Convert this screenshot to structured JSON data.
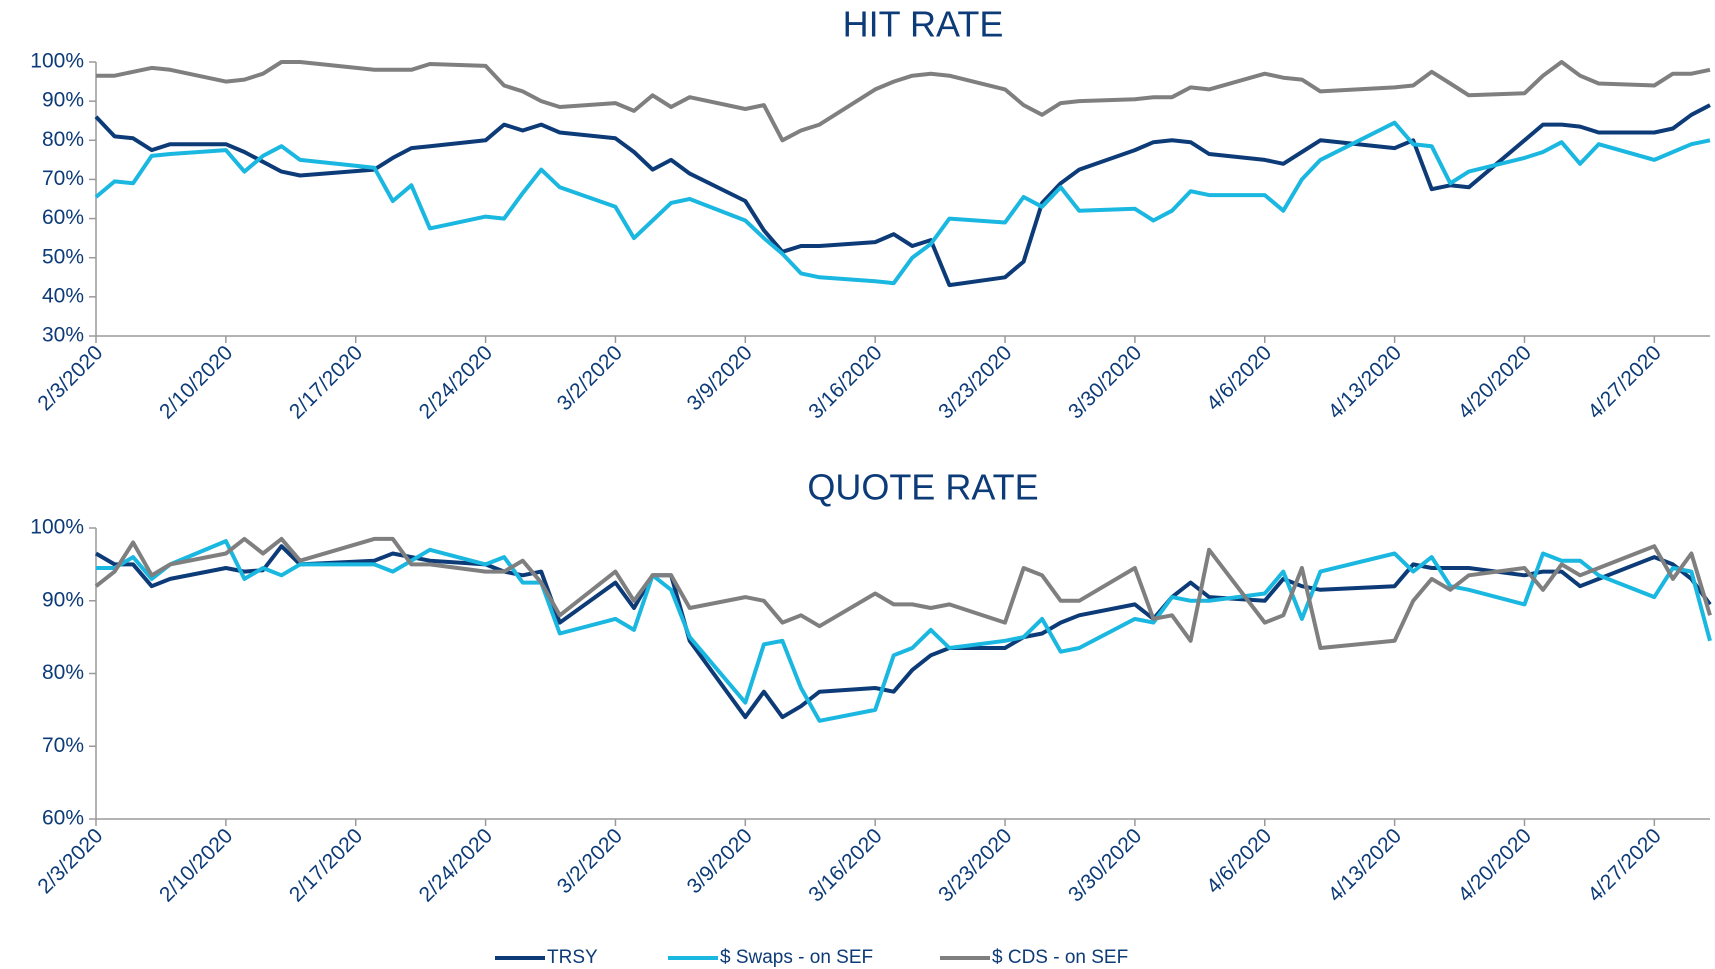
{
  "chart_data": [
    {
      "type": "line",
      "title": "HIT RATE",
      "x": [
        "2/3/2020",
        "2/4/2020",
        "2/5/2020",
        "2/6/2020",
        "2/7/2020",
        "2/10/2020",
        "2/11/2020",
        "2/12/2020",
        "2/13/2020",
        "2/14/2020",
        "2/18/2020",
        "2/19/2020",
        "2/20/2020",
        "2/21/2020",
        "2/24/2020",
        "2/25/2020",
        "2/26/2020",
        "2/27/2020",
        "2/28/2020",
        "3/2/2020",
        "3/3/2020",
        "3/4/2020",
        "3/5/2020",
        "3/6/2020",
        "3/9/2020",
        "3/10/2020",
        "3/11/2020",
        "3/12/2020",
        "3/13/2020",
        "3/16/2020",
        "3/17/2020",
        "3/18/2020",
        "3/19/2020",
        "3/20/2020",
        "3/23/2020",
        "3/24/2020",
        "3/25/2020",
        "3/26/2020",
        "3/27/2020",
        "3/30/2020",
        "3/31/2020",
        "4/1/2020",
        "4/2/2020",
        "4/3/2020",
        "4/6/2020",
        "4/7/2020",
        "4/8/2020",
        "4/9/2020",
        "4/13/2020",
        "4/14/2020",
        "4/15/2020",
        "4/16/2020",
        "4/17/2020",
        "4/20/2020",
        "4/21/2020",
        "4/22/2020",
        "4/23/2020",
        "4/24/2020",
        "4/27/2020",
        "4/28/2020",
        "4/29/2020",
        "4/30/2020"
      ],
      "series": [
        {
          "name": "TRSY",
          "color": "#0d3b78",
          "values": [
            86,
            81,
            80.5,
            77.5,
            79,
            79,
            77,
            74.5,
            72,
            71,
            72.5,
            75.5,
            78,
            78.5,
            80,
            84,
            82.5,
            84,
            82,
            80.5,
            77,
            72.5,
            75,
            71.5,
            64.5,
            57,
            51.5,
            53,
            53,
            54,
            56,
            53,
            54.5,
            43,
            45,
            49,
            64,
            69,
            72.5,
            77.5,
            79.5,
            80,
            79.5,
            76.5,
            75,
            74,
            77,
            80,
            78,
            80,
            67.5,
            68.5,
            68,
            80,
            84,
            84,
            83.5,
            82,
            82,
            83,
            86.5,
            89
          ]
        },
        {
          "name": "$ Swaps - on SEF",
          "color": "#1ab7e0",
          "values": [
            65.5,
            69.5,
            69,
            76,
            76.5,
            77.5,
            72,
            76,
            78.5,
            75,
            73,
            64.5,
            68.5,
            57.5,
            60.5,
            60,
            66.5,
            72.5,
            68,
            63,
            55,
            59.5,
            64,
            65,
            59.5,
            55,
            51,
            46,
            45,
            44,
            43.5,
            50,
            53.5,
            60,
            59,
            65.5,
            63,
            68,
            62,
            62.5,
            59.5,
            62,
            67,
            66,
            66,
            62,
            70,
            75,
            84.5,
            79,
            78.5,
            69,
            72,
            75.5,
            77,
            79.5,
            74,
            79,
            75,
            77,
            79,
            80
          ]
        },
        {
          "name": "$ CDS - on SEF",
          "color": "#7f7f7f",
          "values": [
            96.5,
            96.5,
            97.5,
            98.5,
            98,
            95,
            95.5,
            97,
            100,
            100,
            98,
            98,
            98,
            99.5,
            99,
            94,
            92.5,
            90,
            88.5,
            89.5,
            87.5,
            91.5,
            88.5,
            91,
            88,
            89,
            80,
            82.5,
            84,
            93,
            95,
            96.5,
            97,
            96.5,
            93,
            89,
            86.5,
            89.5,
            90,
            90.5,
            91,
            91,
            93.5,
            93,
            97,
            96,
            95.5,
            92.5,
            93.5,
            94,
            97.5,
            94.5,
            91.5,
            92,
            96.5,
            100,
            96.5,
            94.5,
            94,
            97,
            97,
            98
          ]
        }
      ],
      "xlim": [
        "2/3/2020",
        "4/30/2020"
      ],
      "xticks": [
        "2/3/2020",
        "2/10/2020",
        "2/17/2020",
        "2/24/2020",
        "3/2/2020",
        "3/9/2020",
        "3/16/2020",
        "3/23/2020",
        "3/30/2020",
        "4/6/2020",
        "4/13/2020",
        "4/20/2020",
        "4/27/2020"
      ],
      "ylim": [
        30,
        100
      ],
      "yticks": [
        {
          "value": 30,
          "label": "30%"
        },
        {
          "value": 40,
          "label": "40%"
        },
        {
          "value": 50,
          "label": "50%"
        },
        {
          "value": 60,
          "label": "60%"
        },
        {
          "value": 70,
          "label": "70%"
        },
        {
          "value": 80,
          "label": "80%"
        },
        {
          "value": 90,
          "label": "90%"
        },
        {
          "value": 100,
          "label": "100%"
        }
      ],
      "grid": false
    },
    {
      "type": "line",
      "title": "QUOTE RATE",
      "x": [
        "2/3/2020",
        "2/4/2020",
        "2/5/2020",
        "2/6/2020",
        "2/7/2020",
        "2/10/2020",
        "2/11/2020",
        "2/12/2020",
        "2/13/2020",
        "2/14/2020",
        "2/18/2020",
        "2/19/2020",
        "2/20/2020",
        "2/21/2020",
        "2/24/2020",
        "2/25/2020",
        "2/26/2020",
        "2/27/2020",
        "2/28/2020",
        "3/2/2020",
        "3/3/2020",
        "3/4/2020",
        "3/5/2020",
        "3/6/2020",
        "3/9/2020",
        "3/10/2020",
        "3/11/2020",
        "3/12/2020",
        "3/13/2020",
        "3/16/2020",
        "3/17/2020",
        "3/18/2020",
        "3/19/2020",
        "3/20/2020",
        "3/23/2020",
        "3/24/2020",
        "3/25/2020",
        "3/26/2020",
        "3/27/2020",
        "3/30/2020",
        "3/31/2020",
        "4/1/2020",
        "4/2/2020",
        "4/3/2020",
        "4/6/2020",
        "4/7/2020",
        "4/8/2020",
        "4/9/2020",
        "4/13/2020",
        "4/14/2020",
        "4/15/2020",
        "4/16/2020",
        "4/17/2020",
        "4/20/2020",
        "4/21/2020",
        "4/22/2020",
        "4/23/2020",
        "4/24/2020",
        "4/27/2020",
        "4/28/2020",
        "4/29/2020",
        "4/30/2020"
      ],
      "series": [
        {
          "name": "TRSY",
          "color": "#0d3b78",
          "values": [
            96.5,
            95,
            95,
            92,
            93,
            94.5,
            94,
            94.2,
            97.5,
            95,
            95.5,
            96.5,
            96,
            95.5,
            95,
            94,
            93.5,
            94,
            87,
            92.5,
            89,
            93.5,
            93.5,
            84.5,
            74,
            77.5,
            74,
            75.5,
            77.5,
            78,
            77.5,
            80.5,
            82.5,
            83.5,
            83.5,
            85,
            85.5,
            87,
            88,
            89.5,
            87.5,
            90.5,
            92.5,
            90.5,
            90,
            93,
            92,
            91.5,
            92,
            95,
            94.5,
            94.5,
            94.5,
            93.5,
            94,
            94,
            92,
            93,
            96,
            95,
            93,
            89.5
          ]
        },
        {
          "name": "$ Swaps - on SEF",
          "color": "#1ab7e0",
          "values": [
            94.5,
            94.5,
            96,
            93,
            95,
            98.2,
            93,
            94.5,
            93.5,
            95,
            95,
            94,
            95.5,
            97,
            95,
            96,
            92.5,
            92.5,
            85.5,
            87.5,
            86,
            93.5,
            91.5,
            85,
            76,
            84,
            84.5,
            78,
            73.5,
            75,
            82.5,
            83.5,
            86,
            83.5,
            84.5,
            85,
            87.5,
            83,
            83.5,
            87.5,
            87,
            90.5,
            90,
            90,
            91,
            94,
            87.5,
            94,
            96.5,
            94,
            96,
            92,
            91.5,
            89.5,
            96.5,
            95.5,
            95.5,
            93.5,
            90.5,
            94.5,
            94,
            84.5
          ]
        },
        {
          "name": "$ CDS - on SEF",
          "color": "#7f7f7f",
          "values": [
            92,
            94,
            98,
            93.5,
            95,
            96.5,
            98.5,
            96.5,
            98.5,
            95.5,
            98.5,
            98.5,
            95,
            95,
            94,
            94,
            95.5,
            92.5,
            88,
            94,
            90,
            93.5,
            93.5,
            89,
            90.5,
            90,
            87,
            88,
            86.5,
            91,
            89.5,
            89.5,
            89,
            89.5,
            87,
            94.5,
            93.5,
            90,
            90,
            94.5,
            87.5,
            88,
            84.5,
            97,
            87,
            88,
            94.5,
            83.5,
            84.5,
            90,
            93,
            91.5,
            93.5,
            94.5,
            91.5,
            95,
            93.5,
            94.5,
            97.5,
            93,
            96.5,
            88
          ]
        }
      ],
      "xlim": [
        "2/3/2020",
        "4/30/2020"
      ],
      "xticks": [
        "2/3/2020",
        "2/10/2020",
        "2/17/2020",
        "2/24/2020",
        "3/2/2020",
        "3/9/2020",
        "3/16/2020",
        "3/23/2020",
        "3/30/2020",
        "4/6/2020",
        "4/13/2020",
        "4/20/2020",
        "4/27/2020"
      ],
      "ylim": [
        60,
        100
      ],
      "yticks": [
        {
          "value": 60,
          "label": "60%"
        },
        {
          "value": 70,
          "label": "70%"
        },
        {
          "value": 80,
          "label": "80%"
        },
        {
          "value": 90,
          "label": "90%"
        },
        {
          "value": 100,
          "label": "100%"
        }
      ],
      "grid": false
    }
  ]
}
